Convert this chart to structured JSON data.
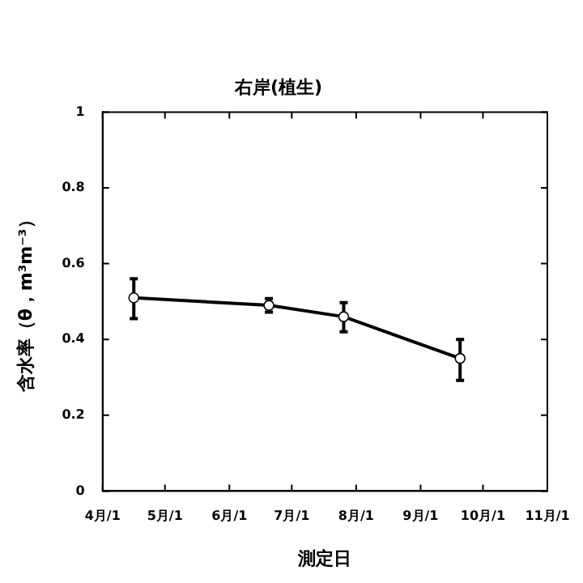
{
  "chart_data": {
    "type": "line",
    "title": "右岸(植生)",
    "xlabel": "測定日",
    "ylabel": "含水率（θ，m³m⁻³）",
    "x": [
      "--04-16",
      "--06-20",
      "--07-26",
      "--09-20"
    ],
    "series": [
      {
        "color": "#000000",
        "values": [
          0.51,
          0.49,
          0.46,
          0.35
        ],
        "errors": [
          [
            0.455,
            0.56
          ],
          [
            0.472,
            0.508
          ],
          [
            0.42,
            0.497
          ],
          [
            0.292,
            0.4
          ]
        ]
      }
    ],
    "xlim": [
      "--04-01",
      "--11-01"
    ],
    "xticks": [
      {
        "value": "--04-01",
        "label": "4月/1"
      },
      {
        "value": "--05-01",
        "label": "5月/1"
      },
      {
        "value": "--06-01",
        "label": "6月/1"
      },
      {
        "value": "--07-01",
        "label": "7月/1"
      },
      {
        "value": "--08-01",
        "label": "8月/1"
      },
      {
        "value": "--09-01",
        "label": "9月/1"
      },
      {
        "value": "--10-01",
        "label": "10月/1"
      },
      {
        "value": "--11-01",
        "label": "11月/1"
      }
    ],
    "ylim": [
      0,
      1
    ],
    "yticks": [
      0,
      0.2,
      0.4,
      0.6,
      0.8,
      1
    ],
    "marker": "circle",
    "line_style": "solid",
    "legend": false
  }
}
